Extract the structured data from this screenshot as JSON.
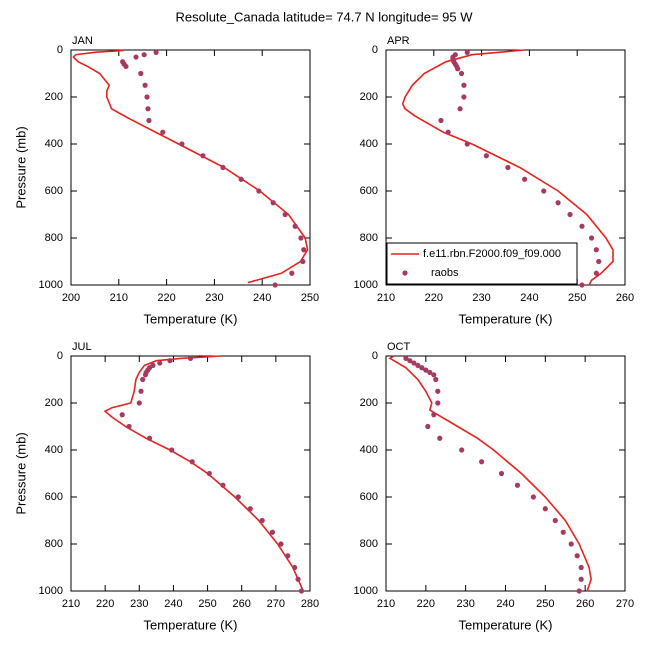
{
  "title": "Resolute_Canada  latitude= 74.7 N longitude= 95 W",
  "chart_data": [
    {
      "type": "line",
      "title": "JAN",
      "xlabel": "Temperature (K)",
      "ylabel": "Pressure (mb)",
      "xlim": [
        200,
        250
      ],
      "xticks": [
        200,
        210,
        220,
        230,
        240,
        250
      ],
      "ylim": [
        1000,
        0
      ],
      "yticks": [
        0,
        200,
        400,
        600,
        800,
        1000
      ],
      "series": [
        {
          "mode": "line",
          "color": "#e8221c",
          "x": [
            211,
            205,
            201,
            200.5,
            201.5,
            203.5,
            206,
            208,
            207.5,
            207.5,
            208.5,
            212,
            222.5,
            232,
            239.5,
            245.5,
            249,
            249.5,
            248,
            244,
            237
          ],
          "values": [
            2,
            10,
            20,
            30,
            50,
            70,
            100,
            150,
            175,
            200,
            250,
            290,
            400,
            500,
            600,
            700,
            800,
            850,
            900,
            950,
            990
          ]
        },
        {
          "mode": "markers",
          "color": "#a83a62",
          "x": [
            217.8,
            215.3,
            213.6,
            210.8,
            211.1,
            211.5,
            214.6,
            215.5,
            215.9,
            216.1,
            216.3,
            219.2,
            223.2,
            227.6,
            231.8,
            235.6,
            239.3,
            242.3,
            244.8,
            246.9,
            248.1,
            248.7,
            248.5,
            246.2,
            242.7
          ],
          "values": [
            10,
            20,
            30,
            50,
            60,
            70,
            100,
            150,
            200,
            250,
            300,
            350,
            400,
            450,
            500,
            550,
            600,
            650,
            700,
            750,
            800,
            850,
            900,
            950,
            1000
          ]
        }
      ]
    },
    {
      "type": "line",
      "title": "APR",
      "xlabel": "Temperature (K)",
      "legend": "lower right",
      "xlim": [
        210,
        260
      ],
      "xticks": [
        210,
        220,
        230,
        240,
        250,
        260
      ],
      "ylim": [
        1000,
        0
      ],
      "yticks": [
        0,
        200,
        400,
        600,
        800,
        1000
      ],
      "series": [
        {
          "name": "f.e11.rbn.F2000.f09_f09.000",
          "mode": "line",
          "color": "#e8221c",
          "x": [
            239,
            228,
            222.5,
            218,
            215.5,
            214,
            213.5,
            214,
            216,
            222,
            228,
            238,
            246,
            252,
            256,
            257.5,
            257.5,
            255,
            253,
            252.5
          ],
          "values": [
            0,
            20,
            50,
            100,
            150,
            200,
            230,
            250,
            280,
            350,
            400,
            500,
            600,
            700,
            800,
            850,
            900,
            950,
            980,
            1000
          ]
        },
        {
          "name": "raobs",
          "mode": "markers",
          "color": "#a83a62",
          "x": [
            227,
            224.5,
            224,
            224,
            224.2,
            224.5,
            224.8,
            225,
            225.8,
            226.3,
            226.3,
            225.5,
            221.5,
            223,
            227,
            231,
            235.5,
            239,
            243,
            246,
            248.5,
            251,
            253,
            254,
            254.5,
            254,
            251
          ],
          "values": [
            10,
            20,
            30,
            40,
            50,
            60,
            70,
            80,
            100,
            150,
            200,
            250,
            300,
            350,
            400,
            450,
            500,
            550,
            600,
            650,
            700,
            750,
            800,
            850,
            900,
            950,
            1000
          ]
        }
      ]
    },
    {
      "type": "line",
      "title": "JUL",
      "xlabel": "Temperature (K)",
      "ylabel": "Pressure (mb)",
      "xlim": [
        210,
        280
      ],
      "xticks": [
        210,
        220,
        230,
        240,
        250,
        260,
        270,
        280
      ],
      "ylim": [
        1000,
        0
      ],
      "yticks": [
        0,
        200,
        400,
        600,
        800,
        1000
      ],
      "series": [
        {
          "mode": "line",
          "color": "#e8221c",
          "x": [
            254,
            242,
            235,
            231.5,
            230,
            229,
            228.5,
            227.5,
            222,
            220,
            222,
            226,
            232,
            239,
            245,
            250,
            258,
            265,
            270.5,
            275,
            278
          ],
          "values": [
            0,
            10,
            20,
            40,
            70,
            100,
            150,
            200,
            220,
            235,
            260,
            300,
            350,
            400,
            450,
            500,
            600,
            700,
            800,
            900,
            1000
          ]
        },
        {
          "mode": "markers",
          "color": "#a83a62",
          "x": [
            245,
            239,
            236,
            234,
            233,
            232.5,
            232,
            231.8,
            231,
            230.5,
            230,
            225,
            227,
            233,
            239.5,
            245.5,
            250.5,
            254.5,
            259,
            262.5,
            266,
            269,
            271.5,
            273.5,
            275.5,
            276.5,
            277.5
          ],
          "values": [
            10,
            20,
            30,
            40,
            50,
            60,
            70,
            80,
            100,
            150,
            200,
            250,
            300,
            350,
            400,
            450,
            500,
            550,
            600,
            650,
            700,
            750,
            800,
            850,
            900,
            950,
            1000
          ]
        }
      ]
    },
    {
      "type": "line",
      "title": "OCT",
      "xlabel": "Temperature (K)",
      "xlim": [
        210,
        270
      ],
      "xticks": [
        210,
        220,
        230,
        240,
        250,
        260,
        270
      ],
      "ylim": [
        1000,
        0
      ],
      "yticks": [
        0,
        200,
        400,
        600,
        800,
        1000
      ],
      "series": [
        {
          "mode": "line",
          "color": "#e8221c",
          "x": [
            212,
            211,
            212,
            215,
            218,
            220,
            221.5,
            221,
            223,
            228,
            233,
            237,
            244,
            250,
            255,
            258.5,
            261,
            261.5,
            260.5
          ],
          "values": [
            0,
            10,
            20,
            50,
            100,
            150,
            200,
            230,
            250,
            300,
            350,
            400,
            500,
            600,
            700,
            800,
            900,
            950,
            1000
          ]
        },
        {
          "mode": "markers",
          "color": "#a83a62",
          "x": [
            215,
            216,
            217,
            218,
            219,
            220,
            221,
            222,
            222.5,
            223,
            223,
            222,
            220.5,
            223.5,
            229,
            234,
            239,
            243,
            247,
            250,
            252.5,
            254.5,
            256.5,
            258,
            259,
            259,
            258.5
          ],
          "values": [
            10,
            20,
            30,
            40,
            50,
            60,
            70,
            80,
            100,
            150,
            200,
            250,
            300,
            350,
            400,
            450,
            500,
            550,
            600,
            650,
            700,
            750,
            800,
            850,
            900,
            950,
            1000
          ]
        }
      ]
    }
  ]
}
